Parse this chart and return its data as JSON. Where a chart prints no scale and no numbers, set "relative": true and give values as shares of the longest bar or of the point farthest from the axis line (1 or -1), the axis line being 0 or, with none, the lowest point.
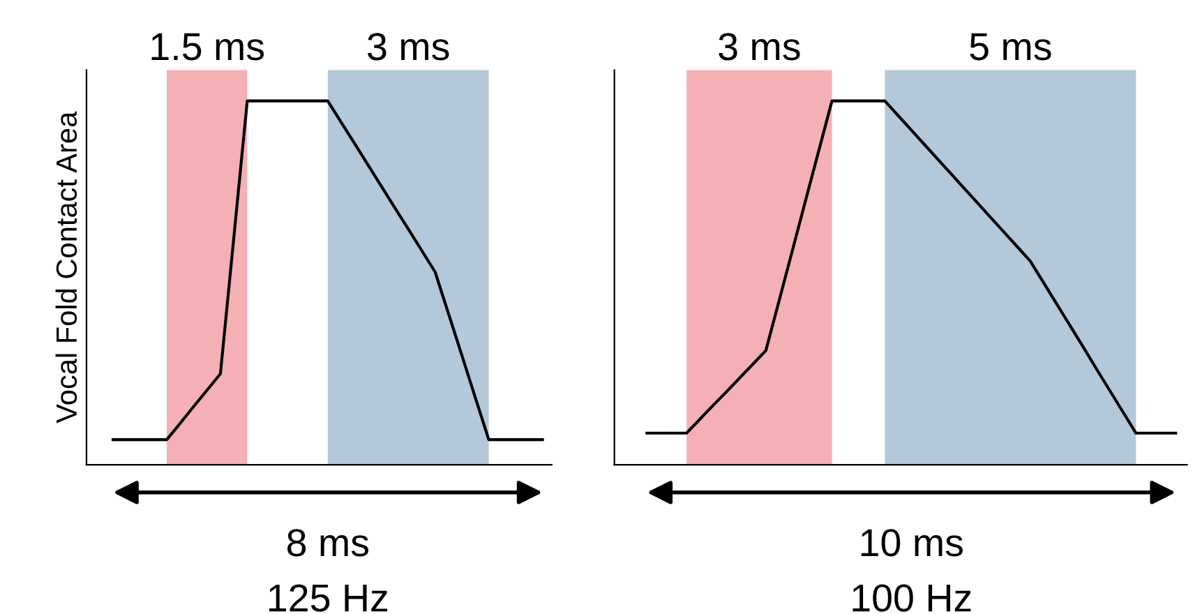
{
  "chart_data": [
    {
      "type": "line",
      "relative": true,
      "ylabel": "Vocal Fold Contact Area",
      "categories": [
        null,
        null,
        null,
        null,
        null,
        null,
        null,
        null,
        null,
        null,
        null,
        null,
        null,
        null,
        null,
        null,
        null,
        null,
        null,
        null,
        null,
        null,
        null,
        null,
        null,
        null,
        null,
        null,
        null,
        null,
        null,
        null,
        null
      ],
      "series": [
        {
          "color": "#000000",
          "values": [
            0.069,
            0.069,
            0.069,
            0.069,
            0.069,
            0.114,
            0.16,
            0.205,
            0.25,
            0.625,
            1,
            1,
            1,
            1,
            1,
            1,
            1,
            0.941,
            0.883,
            0.824,
            0.765,
            0.706,
            0.648,
            0.589,
            0.53,
            0.415,
            0.3,
            0.184,
            0.069,
            0.069,
            0.069,
            0.069,
            0.069
          ]
        }
      ],
      "annotations": [
        "1.5 ms",
        "3 ms",
        "8 ms",
        "125 Hz"
      ]
    },
    {
      "type": "line",
      "relative": true,
      "categories": [
        null,
        null,
        null,
        null,
        null,
        null,
        null,
        null,
        null,
        null,
        null,
        null,
        null,
        null,
        null,
        null,
        null,
        null,
        null,
        null,
        null,
        null,
        null,
        null,
        null,
        null,
        null,
        null,
        null,
        null,
        null,
        null,
        null,
        null,
        null,
        null,
        null,
        null,
        null,
        null,
        null
      ],
      "series": [
        {
          "color": "#000000",
          "values": [
            0.087,
            0.087,
            0.087,
            0.087,
            0.125,
            0.163,
            0.2,
            0.238,
            0.276,
            0.314,
            0.451,
            0.588,
            0.726,
            0.863,
            1,
            1,
            1,
            1,
            1,
            0.96,
            0.92,
            0.88,
            0.84,
            0.8,
            0.76,
            0.72,
            0.68,
            0.64,
            0.6,
            0.56,
            0.501,
            0.442,
            0.383,
            0.324,
            0.264,
            0.205,
            0.146,
            0.087,
            0.087,
            0.087,
            0.087
          ]
        }
      ],
      "annotations": [
        "3 ms",
        "5 ms",
        "10 ms",
        "100 Hz"
      ]
    }
  ]
}
